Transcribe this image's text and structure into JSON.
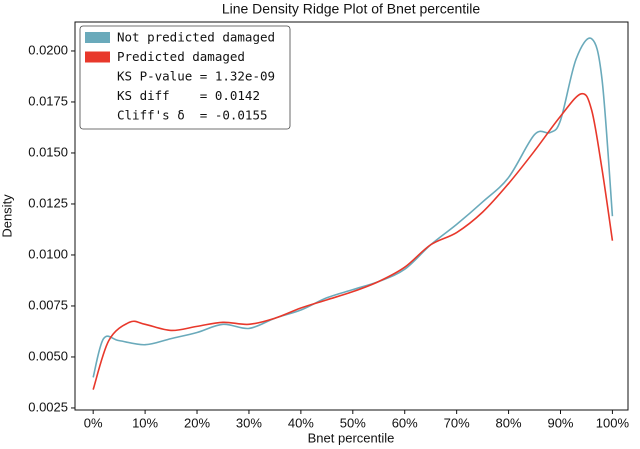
{
  "chart_data": {
    "type": "line",
    "title": "Line Density Ridge Plot of Bnet percentile",
    "x_label": "Bnet percentile",
    "y_label": "Density",
    "series": [
      {
        "name": "Not predicted damaged",
        "color": "#6aaabb",
        "x": [
          0,
          2,
          5,
          10,
          15,
          20,
          25,
          30,
          35,
          40,
          45,
          50,
          55,
          60,
          65,
          70,
          75,
          80,
          85,
          88,
          90,
          93,
          96,
          98,
          100
        ],
        "values": [
          0.004,
          0.0059,
          0.0058,
          0.0056,
          0.0059,
          0.0062,
          0.0066,
          0.0064,
          0.0069,
          0.0073,
          0.0079,
          0.0083,
          0.0087,
          0.0093,
          0.0105,
          0.0115,
          0.0126,
          0.0138,
          0.0159,
          0.016,
          0.0166,
          0.0196,
          0.0206,
          0.0186,
          0.0119
        ]
      },
      {
        "name": "Predicted damaged",
        "color": "#e8382b",
        "x": [
          0,
          3,
          7,
          10,
          15,
          20,
          25,
          30,
          35,
          40,
          45,
          50,
          55,
          60,
          65,
          70,
          75,
          80,
          85,
          90,
          94,
          96,
          98,
          100
        ],
        "values": [
          0.0034,
          0.0058,
          0.0067,
          0.0066,
          0.0063,
          0.0065,
          0.0067,
          0.0066,
          0.0069,
          0.0074,
          0.0078,
          0.0082,
          0.0087,
          0.0094,
          0.0105,
          0.0111,
          0.0121,
          0.0135,
          0.0151,
          0.0168,
          0.0179,
          0.0171,
          0.0142,
          0.0107
        ]
      }
    ],
    "legend_notes": [
      "KS P-value = 1.32e-09",
      "KS diff    = 0.0142",
      "Cliff's δ  = -0.0155"
    ],
    "legend_position": "upper left",
    "xlim": [
      -3.5,
      103
    ],
    "ylim": [
      0.0024,
      0.02142
    ],
    "xticks": [
      {
        "value": 0,
        "label": "0%"
      },
      {
        "value": 10,
        "label": "10%"
      },
      {
        "value": 20,
        "label": "20%"
      },
      {
        "value": 30,
        "label": "30%"
      },
      {
        "value": 40,
        "label": "40%"
      },
      {
        "value": 50,
        "label": "50%"
      },
      {
        "value": 60,
        "label": "60%"
      },
      {
        "value": 70,
        "label": "70%"
      },
      {
        "value": 80,
        "label": "80%"
      },
      {
        "value": 90,
        "label": "90%"
      },
      {
        "value": 100,
        "label": "100%"
      }
    ],
    "yticks": [
      {
        "value": 0.0025,
        "label": "0.0025"
      },
      {
        "value": 0.005,
        "label": "0.0050"
      },
      {
        "value": 0.0075,
        "label": "0.0075"
      },
      {
        "value": 0.01,
        "label": "0.0100"
      },
      {
        "value": 0.0125,
        "label": "0.0125"
      },
      {
        "value": 0.015,
        "label": "0.0150"
      },
      {
        "value": 0.0175,
        "label": "0.0175"
      },
      {
        "value": 0.02,
        "label": "0.0200"
      }
    ]
  }
}
